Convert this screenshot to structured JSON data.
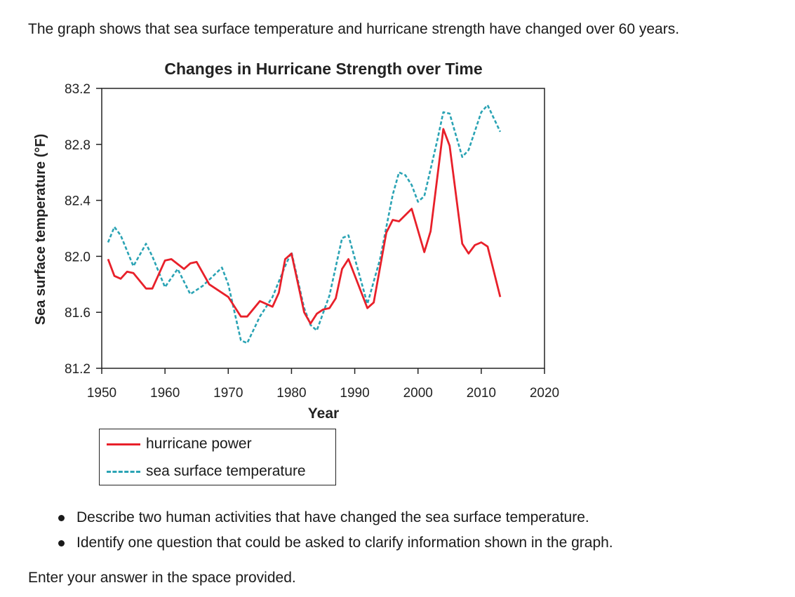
{
  "intro_text": "The graph shows that sea surface temperature and hurricane strength have changed over 60 years.",
  "chart_data": {
    "type": "line",
    "title": "Changes in Hurricane Strength over Time",
    "xlabel": "Year",
    "ylabel": "Sea surface temperature (°F)",
    "xlim": [
      1950,
      2020
    ],
    "ylim": [
      81.2,
      83.2
    ],
    "x_ticks": [
      "1950",
      "1960",
      "1970",
      "1980",
      "1990",
      "2000",
      "2010",
      "2020"
    ],
    "y_ticks": [
      "83.2",
      "82.8",
      "82.4",
      "82.0",
      "81.6",
      "81.2"
    ],
    "grid": false,
    "legend_position": "below",
    "series": [
      {
        "name": "hurricane power",
        "style": "solid",
        "color": "#e8202a",
        "points": [
          [
            1951,
            81.98
          ],
          [
            1952,
            81.86
          ],
          [
            1953,
            81.84
          ],
          [
            1954,
            81.89
          ],
          [
            1955,
            81.88
          ],
          [
            1957,
            81.77
          ],
          [
            1958,
            81.77
          ],
          [
            1960,
            81.97
          ],
          [
            1961,
            81.98
          ],
          [
            1963,
            81.91
          ],
          [
            1964,
            81.95
          ],
          [
            1965,
            81.96
          ],
          [
            1967,
            81.8
          ],
          [
            1970,
            81.71
          ],
          [
            1972,
            81.57
          ],
          [
            1973,
            81.57
          ],
          [
            1975,
            81.68
          ],
          [
            1977,
            81.64
          ],
          [
            1978,
            81.74
          ],
          [
            1979,
            81.98
          ],
          [
            1980,
            82.02
          ],
          [
            1982,
            81.6
          ],
          [
            1983,
            81.52
          ],
          [
            1984,
            81.59
          ],
          [
            1985,
            81.62
          ],
          [
            1986,
            81.63
          ],
          [
            1987,
            81.7
          ],
          [
            1988,
            81.91
          ],
          [
            1989,
            81.98
          ],
          [
            1992,
            81.63
          ],
          [
            1993,
            81.67
          ],
          [
            1995,
            82.17
          ],
          [
            1996,
            82.26
          ],
          [
            1997,
            82.25
          ],
          [
            1999,
            82.34
          ],
          [
            2001,
            82.03
          ],
          [
            2002,
            82.18
          ],
          [
            2004,
            82.91
          ],
          [
            2005,
            82.79
          ],
          [
            2007,
            82.09
          ],
          [
            2008,
            82.02
          ],
          [
            2009,
            82.08
          ],
          [
            2010,
            82.1
          ],
          [
            2011,
            82.07
          ],
          [
            2013,
            81.71
          ]
        ]
      },
      {
        "name": "sea surface temperature",
        "style": "dashed",
        "color": "#2aa3b4",
        "points": [
          [
            1951,
            82.1
          ],
          [
            1952,
            82.21
          ],
          [
            1953,
            82.15
          ],
          [
            1955,
            81.93
          ],
          [
            1957,
            82.09
          ],
          [
            1958,
            82.0
          ],
          [
            1960,
            81.78
          ],
          [
            1962,
            81.91
          ],
          [
            1964,
            81.73
          ],
          [
            1966,
            81.79
          ],
          [
            1969,
            81.92
          ],
          [
            1970,
            81.8
          ],
          [
            1972,
            81.4
          ],
          [
            1973,
            81.38
          ],
          [
            1975,
            81.57
          ],
          [
            1977,
            81.71
          ],
          [
            1979,
            81.93
          ],
          [
            1980,
            82.03
          ],
          [
            1982,
            81.63
          ],
          [
            1983,
            81.51
          ],
          [
            1984,
            81.47
          ],
          [
            1986,
            81.72
          ],
          [
            1988,
            82.13
          ],
          [
            1989,
            82.15
          ],
          [
            1992,
            81.66
          ],
          [
            1994,
            81.98
          ],
          [
            1996,
            82.44
          ],
          [
            1997,
            82.6
          ],
          [
            1998,
            82.58
          ],
          [
            1999,
            82.51
          ],
          [
            2000,
            82.39
          ],
          [
            2001,
            82.43
          ],
          [
            2003,
            82.82
          ],
          [
            2004,
            83.03
          ],
          [
            2005,
            83.02
          ],
          [
            2007,
            82.71
          ],
          [
            2008,
            82.76
          ],
          [
            2010,
            83.03
          ],
          [
            2011,
            83.08
          ],
          [
            2013,
            82.89
          ]
        ]
      }
    ]
  },
  "bullets": [
    "Describe two human activities that have changed the sea surface temperature.",
    "Identify one question that could be asked to clarify information shown in the graph."
  ],
  "prompt_text": "Enter your answer in the space provided."
}
